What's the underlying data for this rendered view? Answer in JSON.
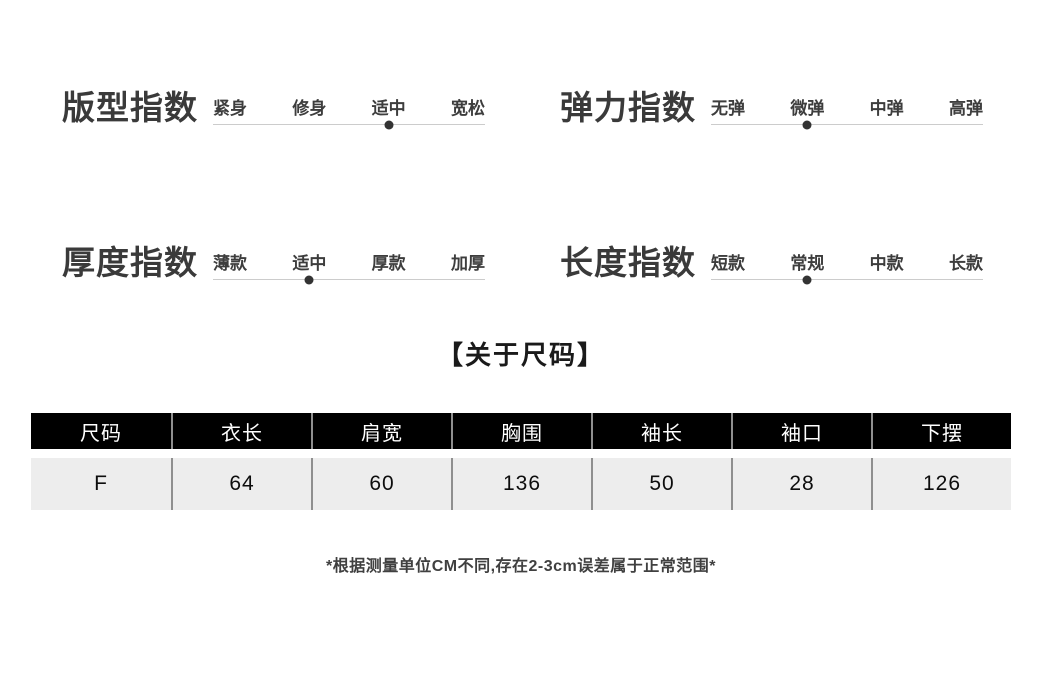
{
  "indices": [
    {
      "label": "版型指数",
      "options": [
        "紧身",
        "修身",
        "适中",
        "宽松"
      ],
      "selected": 2
    },
    {
      "label": "弹力指数",
      "options": [
        "无弹",
        "微弹",
        "中弹",
        "高弹"
      ],
      "selected": 1
    },
    {
      "label": "厚度指数",
      "options": [
        "薄款",
        "适中",
        "厚款",
        "加厚"
      ],
      "selected": 1
    },
    {
      "label": "长度指数",
      "options": [
        "短款",
        "常规",
        "中款",
        "长款"
      ],
      "selected": 1
    }
  ],
  "size_section": {
    "title": "【关于尺码】",
    "table": {
      "headers": [
        "尺码",
        "衣长",
        "肩宽",
        "胸围",
        "袖长",
        "袖口",
        "下摆"
      ],
      "rows": [
        [
          "F",
          "64",
          "60",
          "136",
          "50",
          "28",
          "126"
        ]
      ]
    },
    "note": "*根据测量单位CM不同,存在2-3cm误差属于正常范围*"
  },
  "colors": {
    "table_header_bg": "#000000",
    "table_row_bg": "#ededed",
    "marker_dot": "#333333",
    "track_line": "#cccccc"
  }
}
